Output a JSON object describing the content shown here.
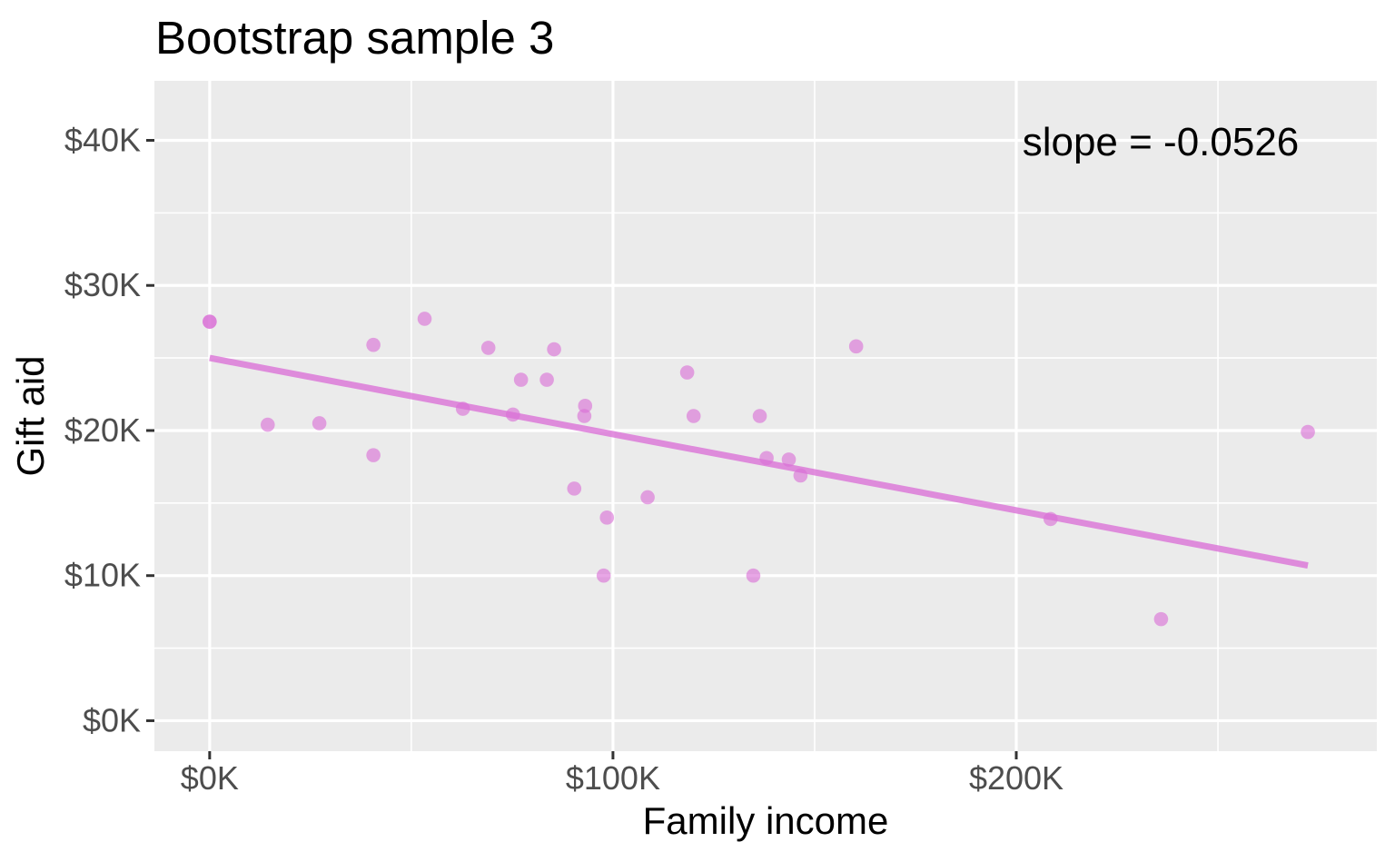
{
  "chart_data": {
    "type": "scatter",
    "title": "Bootstrap sample 3",
    "xlabel": "Family income",
    "ylabel": "Gift aid",
    "annotation": "slope = -0.0526",
    "slope": -0.0526,
    "xlim": [
      -13.7,
      289.4
    ],
    "ylim": [
      -2.1,
      44.1
    ],
    "grid": "on",
    "legend": "none",
    "x_ticks": [
      {
        "value": 0,
        "label": "$0K"
      },
      {
        "value": 100,
        "label": "$100K"
      },
      {
        "value": 200,
        "label": "$200K"
      }
    ],
    "y_ticks": [
      {
        "value": 0,
        "label": "$0K"
      },
      {
        "value": 10,
        "label": "$10K"
      },
      {
        "value": 20,
        "label": "$20K"
      },
      {
        "value": 30,
        "label": "$30K"
      },
      {
        "value": 40,
        "label": "$40K"
      }
    ],
    "x_minor": [
      50,
      150,
      250
    ],
    "y_minor": [
      5,
      15,
      25,
      35
    ],
    "points_unit": "thousand dollars [family_income, gift_aid]",
    "points": [
      [
        0,
        27.5
      ],
      [
        0,
        27.5
      ],
      [
        14.4,
        20.4
      ],
      [
        27.2,
        20.5
      ],
      [
        40.6,
        25.9
      ],
      [
        40.6,
        18.3
      ],
      [
        53.3,
        27.7
      ],
      [
        62.8,
        21.5
      ],
      [
        69.1,
        25.7
      ],
      [
        75.2,
        21.1
      ],
      [
        77.2,
        23.5
      ],
      [
        83.6,
        23.5
      ],
      [
        85.4,
        25.6
      ],
      [
        90.4,
        16.0
      ],
      [
        93.1,
        21.7
      ],
      [
        92.9,
        21.0
      ],
      [
        98.5,
        14.0
      ],
      [
        97.7,
        10.0
      ],
      [
        108.6,
        15.4
      ],
      [
        118.4,
        24.0
      ],
      [
        120.0,
        21.0
      ],
      [
        134.8,
        10.0
      ],
      [
        136.4,
        21.0
      ],
      [
        138.1,
        18.1
      ],
      [
        143.6,
        18.0
      ],
      [
        146.5,
        16.9
      ],
      [
        160.3,
        25.8
      ],
      [
        208.5,
        13.9
      ],
      [
        235.9,
        7.0
      ],
      [
        272.3,
        19.9
      ]
    ],
    "trend_line": {
      "x1": 0,
      "y1": 25.0,
      "x2": 272.3,
      "y2": 10.7
    },
    "colors": {
      "point": "#DA70D6",
      "point_opacity": 0.62,
      "trend": "#DA70D6",
      "trend_opacity": 0.78,
      "panel_bg": "#EBEBEB",
      "gridline": "#FFFFFF",
      "tick_label": "#4D4D4D",
      "tick_mark": "#333333",
      "text": "#000000"
    }
  }
}
